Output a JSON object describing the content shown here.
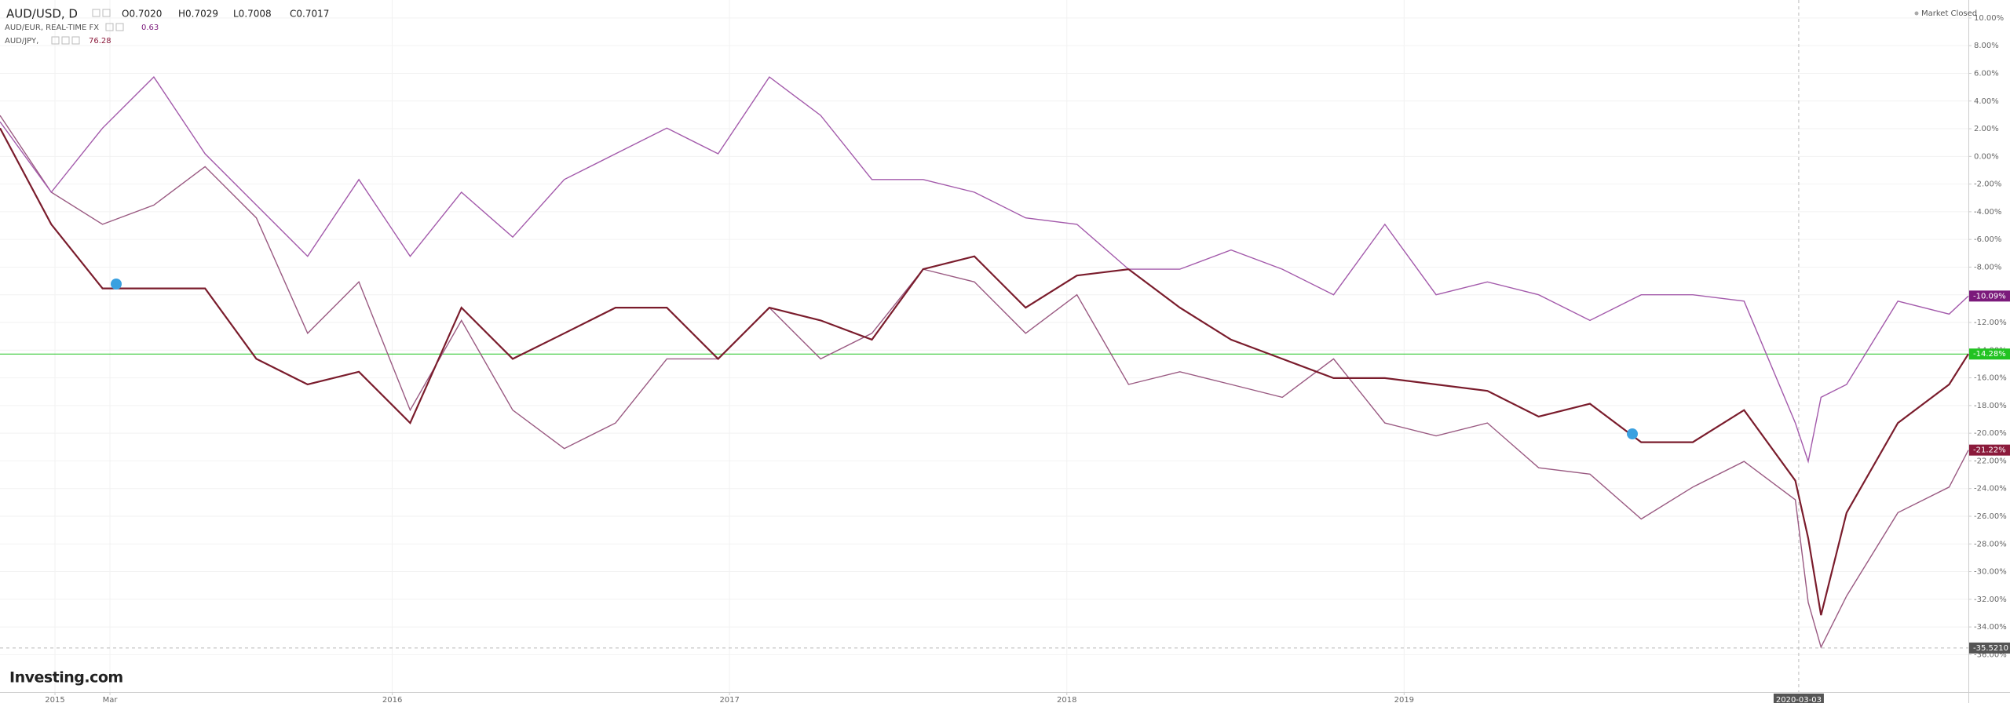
{
  "chart_data": {
    "type": "line",
    "ohlc": [
      "O0.7020",
      "H0.7029",
      "L0.7008",
      "C0.7017"
    ],
    "status": "Market Closed",
    "watermark": "Investing.com",
    "x": [
      2014.837,
      2014.989,
      2015.141,
      2015.293,
      2015.445,
      2015.597,
      2015.749,
      2015.901,
      2016.053,
      2016.205,
      2016.357,
      2016.51,
      2016.662,
      2016.814,
      2016.966,
      2017.118,
      2017.27,
      2017.422,
      2017.574,
      2017.726,
      2017.878,
      2018.03,
      2018.183,
      2018.335,
      2018.487,
      2018.639,
      2018.791,
      2018.943,
      2019.095,
      2019.247,
      2019.399,
      2019.551,
      2019.703,
      2019.856,
      2020.008,
      2020.16,
      2020.198,
      2020.236,
      2020.312,
      2020.464,
      2020.616,
      2020.673
    ],
    "series": [
      {
        "name": "AUD/USD, D",
        "color": "#7a1c2c",
        "label_color": "#22c322",
        "last_label": "-14.28%",
        "values": [
          2.04,
          -4.91,
          -9.54,
          -9.54,
          -9.54,
          -14.63,
          -16.48,
          -15.56,
          -19.26,
          -10.93,
          -14.63,
          -12.78,
          -10.93,
          -10.93,
          -14.63,
          -10.93,
          -11.85,
          -13.24,
          -8.15,
          -7.22,
          -10.93,
          -8.61,
          -8.15,
          -10.93,
          -13.24,
          -14.63,
          -16.02,
          -16.02,
          -16.48,
          -16.94,
          -18.8,
          -17.87,
          -20.65,
          -20.65,
          -18.33,
          -23.43,
          -27.59,
          -33.15,
          -25.74,
          -19.26,
          -16.48,
          -14.28
        ]
      },
      {
        "name": "AUD/EUR, REAL-TIME FX",
        "quote": "0.63",
        "color": "#a35aab",
        "label_color": "#7b1a7b",
        "last_label": "-10.09%",
        "values": [
          2.5,
          -2.59,
          2.04,
          5.74,
          0.19,
          -3.52,
          -7.22,
          -1.67,
          -7.22,
          -2.59,
          -5.83,
          -1.67,
          0.19,
          2.04,
          0.19,
          5.74,
          2.96,
          -1.67,
          -1.67,
          -2.59,
          -4.44,
          -4.91,
          -8.15,
          -8.15,
          -6.76,
          -8.15,
          -10.0,
          -4.91,
          -10.0,
          -9.07,
          -10.0,
          -11.85,
          -10.0,
          -10.0,
          -10.46,
          -19.26,
          -22.04,
          -17.41,
          -16.48,
          -10.46,
          -11.39,
          -10.09
        ]
      },
      {
        "name": "AUD/JPY,",
        "quote": "76.28",
        "color": "#9a5a82",
        "label_color": "#8b1a3b",
        "last_label": "-21.22%",
        "values": [
          2.96,
          -2.59,
          -4.91,
          -3.52,
          -0.74,
          -4.44,
          -12.78,
          -9.07,
          -18.33,
          -11.85,
          -18.33,
          -21.11,
          -19.26,
          -14.63,
          -14.63,
          -10.93,
          -14.63,
          -12.78,
          -8.15,
          -9.07,
          -12.78,
          -10.0,
          -16.48,
          -15.56,
          -16.48,
          -17.41,
          -14.63,
          -19.26,
          -20.19,
          -19.26,
          -22.5,
          -22.96,
          -26.2,
          -23.89,
          -22.04,
          -24.81,
          -32.22,
          -35.46,
          -31.76,
          -25.74,
          -23.89,
          -21.22
        ]
      }
    ],
    "xlim": [
      2014.837,
      2020.673
    ],
    "xticks": [
      {
        "value": 2015,
        "label": "2015"
      },
      {
        "value": 2015.163,
        "label": "Mar"
      },
      {
        "value": 2016,
        "label": "2016"
      },
      {
        "value": 2017,
        "label": "2017"
      },
      {
        "value": 2018,
        "label": "2018"
      },
      {
        "value": 2019,
        "label": "2019"
      }
    ],
    "ylim": [
      -38.7,
      11.3
    ],
    "yticks": [
      {
        "value": 10,
        "label": "10.00%"
      },
      {
        "value": 8,
        "label": "8.00%"
      },
      {
        "value": 6,
        "label": "6.00%"
      },
      {
        "value": 4,
        "label": "4.00%"
      },
      {
        "value": 2,
        "label": "2.00%"
      },
      {
        "value": 0,
        "label": "0.00%"
      },
      {
        "value": -2,
        "label": "-2.00%"
      },
      {
        "value": -4,
        "label": "-4.00%"
      },
      {
        "value": -6,
        "label": "-6.00%"
      },
      {
        "value": -8,
        "label": "-8.00%"
      },
      {
        "value": -10,
        "label": "-10.00%"
      },
      {
        "value": -12,
        "label": "-12.00%"
      },
      {
        "value": -14,
        "label": "-14.00%"
      },
      {
        "value": -16,
        "label": "-16.00%"
      },
      {
        "value": -18,
        "label": "-18.00%"
      },
      {
        "value": -20,
        "label": "-20.00%"
      },
      {
        "value": -22,
        "label": "-22.00%"
      },
      {
        "value": -24,
        "label": "-24.00%"
      },
      {
        "value": -26,
        "label": "-26.00%"
      },
      {
        "value": -28,
        "label": "-28.00%"
      },
      {
        "value": -30,
        "label": "-30.00%"
      },
      {
        "value": -32,
        "label": "-32.00%"
      },
      {
        "value": -34,
        "label": "-34.00%"
      },
      {
        "value": -36,
        "label": "-36.00%"
      }
    ],
    "grid": true,
    "crosshair": {
      "x": {
        "value": 2020.17,
        "label": "2020-03-03"
      },
      "y": {
        "value": -35.521,
        "label": "-35.5210"
      }
    }
  }
}
